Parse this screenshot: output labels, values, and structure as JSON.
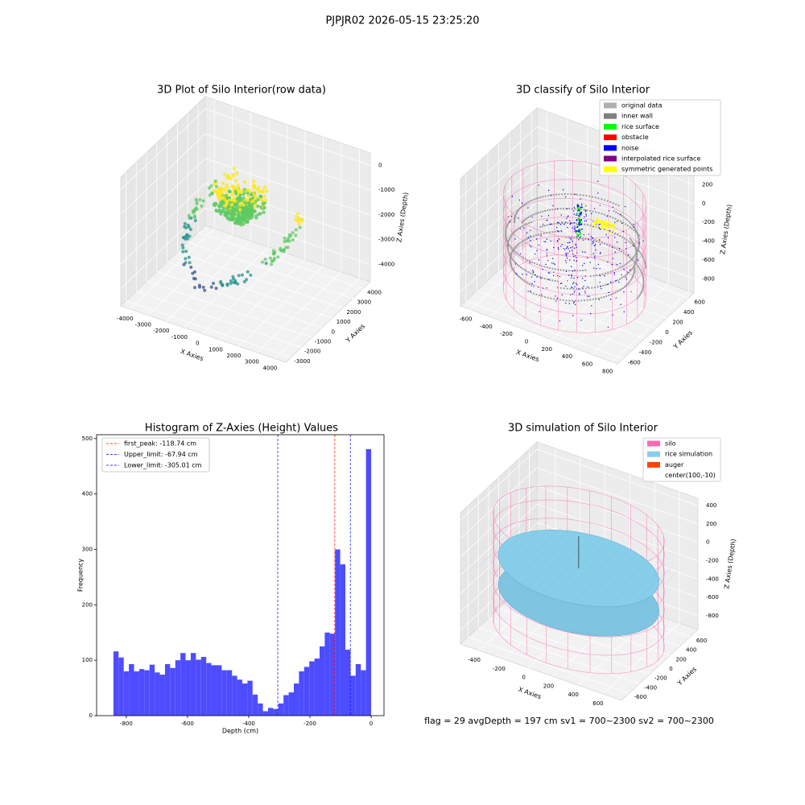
{
  "title": "PJPJR02 2026-05-15 23:25:20",
  "footer": "flag = 29  avgDepth = 197 cm  sv1 = 700~2300  sv2 = 700~2300",
  "chart_data": [
    {
      "type": "scatter3d",
      "title": "3D Plot of Silo Interior(row data)",
      "xlabel": "X Axies",
      "ylabel": "Y Axies",
      "zlabel": "Z Axies (Depth)",
      "xlim": [
        -4500,
        4600
      ],
      "ylim": [
        -3500,
        4700
      ],
      "zlim": [
        -4700,
        500
      ],
      "xticks": [
        -4000,
        -3000,
        -2000,
        -1000,
        0,
        1000,
        2000,
        3000,
        4000
      ],
      "yticks": [
        -3000,
        -2000,
        -1000,
        0,
        1000,
        2000,
        3000,
        4000
      ],
      "zticks": [
        -4000,
        -3000,
        -2000,
        -1000,
        0
      ]
    },
    {
      "type": "scatter3d",
      "title": "3D classify of Silo Interior",
      "xlabel": "X Axies",
      "ylabel": "Y Axies",
      "zlabel": "Z Axies (Depth)",
      "xlim": [
        -700,
        850
      ],
      "ylim": [
        -700,
        700
      ],
      "zlim": [
        -950,
        400
      ],
      "xticks": [
        -600,
        -400,
        -200,
        0,
        200,
        400,
        600,
        800
      ],
      "yticks": [
        -600,
        -400,
        -200,
        0,
        200,
        400,
        600
      ],
      "zticks": [
        -800,
        -600,
        -400,
        -200,
        0,
        200
      ],
      "legend": [
        {
          "name": "original data",
          "color": "#b0b0b0"
        },
        {
          "name": "inner wall",
          "color": "#808080"
        },
        {
          "name": "rice surface",
          "color": "#00ff00"
        },
        {
          "name": "obstacle",
          "color": "#ff0000"
        },
        {
          "name": "noise",
          "color": "#0000ff"
        },
        {
          "name": "interpolated rice surface",
          "color": "#800080"
        },
        {
          "name": "symmetric generated points",
          "color": "#ffff00"
        }
      ]
    },
    {
      "type": "histogram",
      "title": "Histogram of Z-Axies (Height) Values",
      "xlabel": "Depth (cm)",
      "ylabel": "Frequency",
      "color": "#4d4dff",
      "bins": [
        -842,
        -825.16,
        -808.32,
        -791.48,
        -774.64,
        -757.8,
        -740.96,
        -724.12,
        -707.28,
        -690.44,
        -673.6,
        -656.76,
        -639.92,
        -623.08,
        -606.24,
        -589.4,
        -572.56,
        -555.72,
        -538.88,
        -522.04,
        -505.2,
        -488.36,
        -471.52,
        -454.68,
        -437.84,
        -421,
        -404.16,
        -387.32,
        -370.48,
        -353.64,
        -336.8,
        -319.96,
        -303.12,
        -286.28,
        -269.44,
        -252.6,
        -235.76,
        -218.92,
        -202.08,
        -185.24,
        -168.4,
        -151.56,
        -134.72,
        -117.88,
        -101.04,
        -84.2,
        -67.36,
        -50.52,
        -33.68,
        -16.84,
        0
      ],
      "values": [
        116,
        105,
        80,
        93,
        80,
        84,
        82,
        92,
        78,
        74,
        93,
        86,
        100,
        113,
        100,
        113,
        101,
        106,
        95,
        91,
        91,
        82,
        82,
        72,
        65,
        58,
        63,
        38,
        22,
        8,
        14,
        12,
        22,
        37,
        42,
        58,
        80,
        88,
        98,
        103,
        125,
        150,
        148,
        300,
        273,
        119,
        72,
        93,
        82,
        481
      ],
      "xlim": [
        -897,
        42
      ],
      "ylim": [
        0,
        507
      ],
      "xticks": [
        -800,
        -600,
        -400,
        -200,
        0
      ],
      "yticks": [
        0,
        100,
        200,
        300,
        400,
        500
      ],
      "lines": [
        {
          "name": "first_peak: -118.74 cm",
          "value": -118.74,
          "color": "#ff0000"
        },
        {
          "name": "Upper_limit: -67.94 cm",
          "value": -67.94,
          "color": "#0000ff"
        },
        {
          "name": "Lower_limit: -305.01 cm",
          "value": -305.01,
          "color": "#0000ff"
        }
      ]
    },
    {
      "type": "surface3d",
      "title": "3D simulation of Silo Interior",
      "xlabel": "X Axies",
      "ylabel": "Y Axies",
      "zlabel": "Z Axies (Depth)",
      "xlim": [
        -550,
        750
      ],
      "ylim": [
        -750,
        750
      ],
      "zlim": [
        -950,
        480
      ],
      "xticks": [
        -400,
        -200,
        0,
        200,
        400,
        600
      ],
      "yticks": [
        -600,
        -400,
        -200,
        0,
        200,
        400,
        600
      ],
      "zticks": [
        -800,
        -600,
        -400,
        -200,
        0,
        200,
        400
      ],
      "legend": [
        {
          "name": "silo",
          "color": "#ff69b4"
        },
        {
          "name": "rice simulation",
          "color": "#87ceeb"
        },
        {
          "name": "auger",
          "color": "#ff4500"
        },
        {
          "name": "center(100,-10)"
        }
      ]
    }
  ]
}
